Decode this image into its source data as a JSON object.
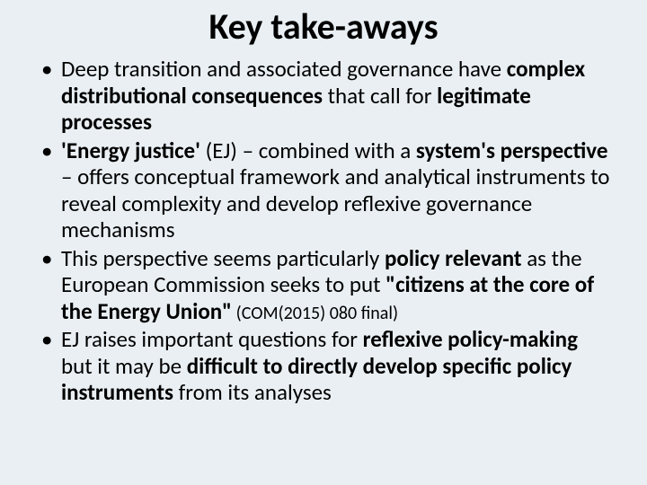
{
  "background_color": "#e9eff3",
  "text_color": "#000000",
  "title_fontsize": 40,
  "body_fontsize": 25,
  "cite_fontsize": 20,
  "slide": {
    "title": "Key take-aways",
    "bullets": [
      {
        "t1": "Deep transition and associated governance have ",
        "b1": "complex distributional consequences",
        "t2": " that call for ",
        "b2": "legitimate processes"
      },
      {
        "b1": "'Energy justice'",
        "t1": " (EJ) – combined with a ",
        "b2": "system's perspective",
        "t2": " – offers conceptual framework and analytical instruments to reveal complexity and develop reflexive governance mechanisms"
      },
      {
        "t1": "This perspective seems particularly ",
        "b1": "policy relevant",
        "t2": " as the European Commission seeks to put ",
        "b2": "\"citizens at the core of the Energy Union\"",
        "cite": " (COM(2015) 080 final)"
      },
      {
        "t1": "EJ raises important questions for ",
        "b1": "reflexive policy-making",
        "t2": " but it may be ",
        "b2": "difficult to directly develop specific policy instruments",
        "t3": " from its analyses"
      }
    ]
  }
}
